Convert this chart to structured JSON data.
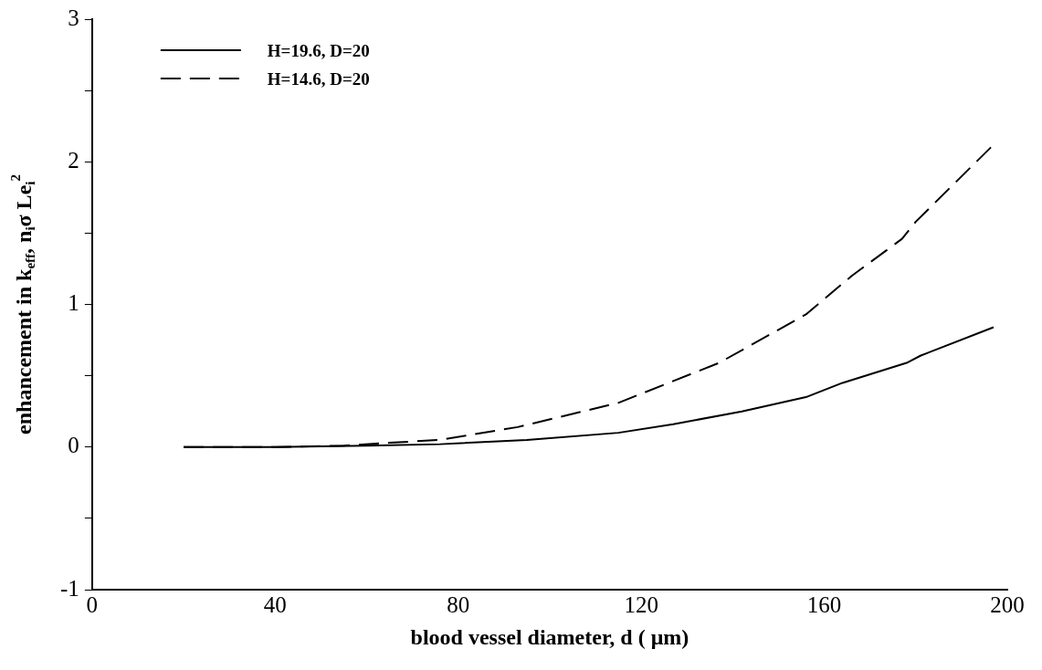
{
  "chart_data": {
    "type": "line",
    "xlabel": "blood vessel diameter, d ( μm)",
    "ylabel": "enhancement in k$_{eff}$, n$_{i}$σ Le$_{i}$$^{2}$",
    "x": [
      20,
      40,
      60,
      76,
      95,
      115,
      127,
      142,
      156,
      164,
      178,
      181,
      197
    ],
    "series": [
      {
        "name": "H=19.6, D=20",
        "color": "#000000",
        "line_style": "solid",
        "values": [
          0,
          0,
          0.01,
          0.02,
          0.05,
          0.1,
          0.16,
          0.25,
          0.35,
          0.45,
          0.59,
          0.64,
          0.84
        ]
      },
      {
        "name": "H=14.6, D=20",
        "color": "#000000",
        "line_style": "dashed",
        "x": [
          20,
          40,
          55,
          65,
          76,
          93,
          115,
          137,
          156,
          166,
          177,
          180,
          197
        ],
        "values": [
          0,
          0,
          0.01,
          0.03,
          0.05,
          0.14,
          0.31,
          0.59,
          0.93,
          1.2,
          1.46,
          1.58,
          2.12
        ]
      }
    ],
    "xlim": [
      0,
      200
    ],
    "xticks": [
      0,
      40,
      80,
      120,
      160,
      200
    ],
    "ylim": [
      -1,
      3
    ],
    "yticks": [
      -1,
      {
        "value": -0.5,
        "label": null
      },
      0,
      {
        "value": 0.5,
        "label": null
      },
      1,
      {
        "value": 1.5,
        "label": null
      },
      2,
      {
        "value": 2.5,
        "label": null
      },
      3
    ],
    "grid": false,
    "legend": "top left",
    "marker": "none"
  }
}
